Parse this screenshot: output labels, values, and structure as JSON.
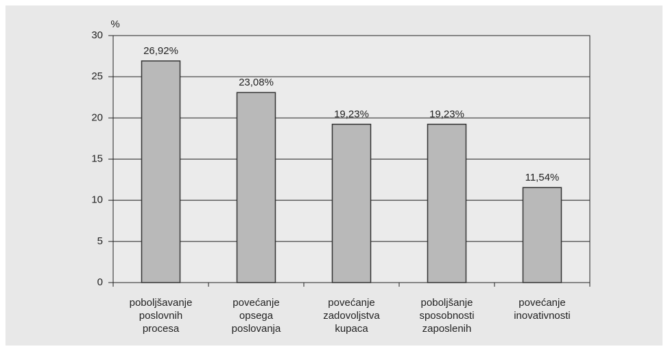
{
  "chart_data": {
    "type": "bar",
    "y_label": "%",
    "categories": [
      "poboljšavanje poslovnih procesa",
      "povećanje opsega poslovanja",
      "povećanje zadovoljstva kupaca",
      "poboljšanje sposobnosti zaposlenih",
      "povećanje inovativnosti"
    ],
    "values": [
      26.92,
      23.08,
      19.23,
      19.23,
      11.54
    ],
    "value_labels": [
      "26,92%",
      "23,08%",
      "19,23%",
      "19,23%",
      "11,54%"
    ],
    "color": "#b9b9b9",
    "ylim": [
      0,
      30
    ],
    "yticks": [
      0,
      5,
      10,
      15,
      20,
      25,
      30
    ],
    "grid": true
  }
}
